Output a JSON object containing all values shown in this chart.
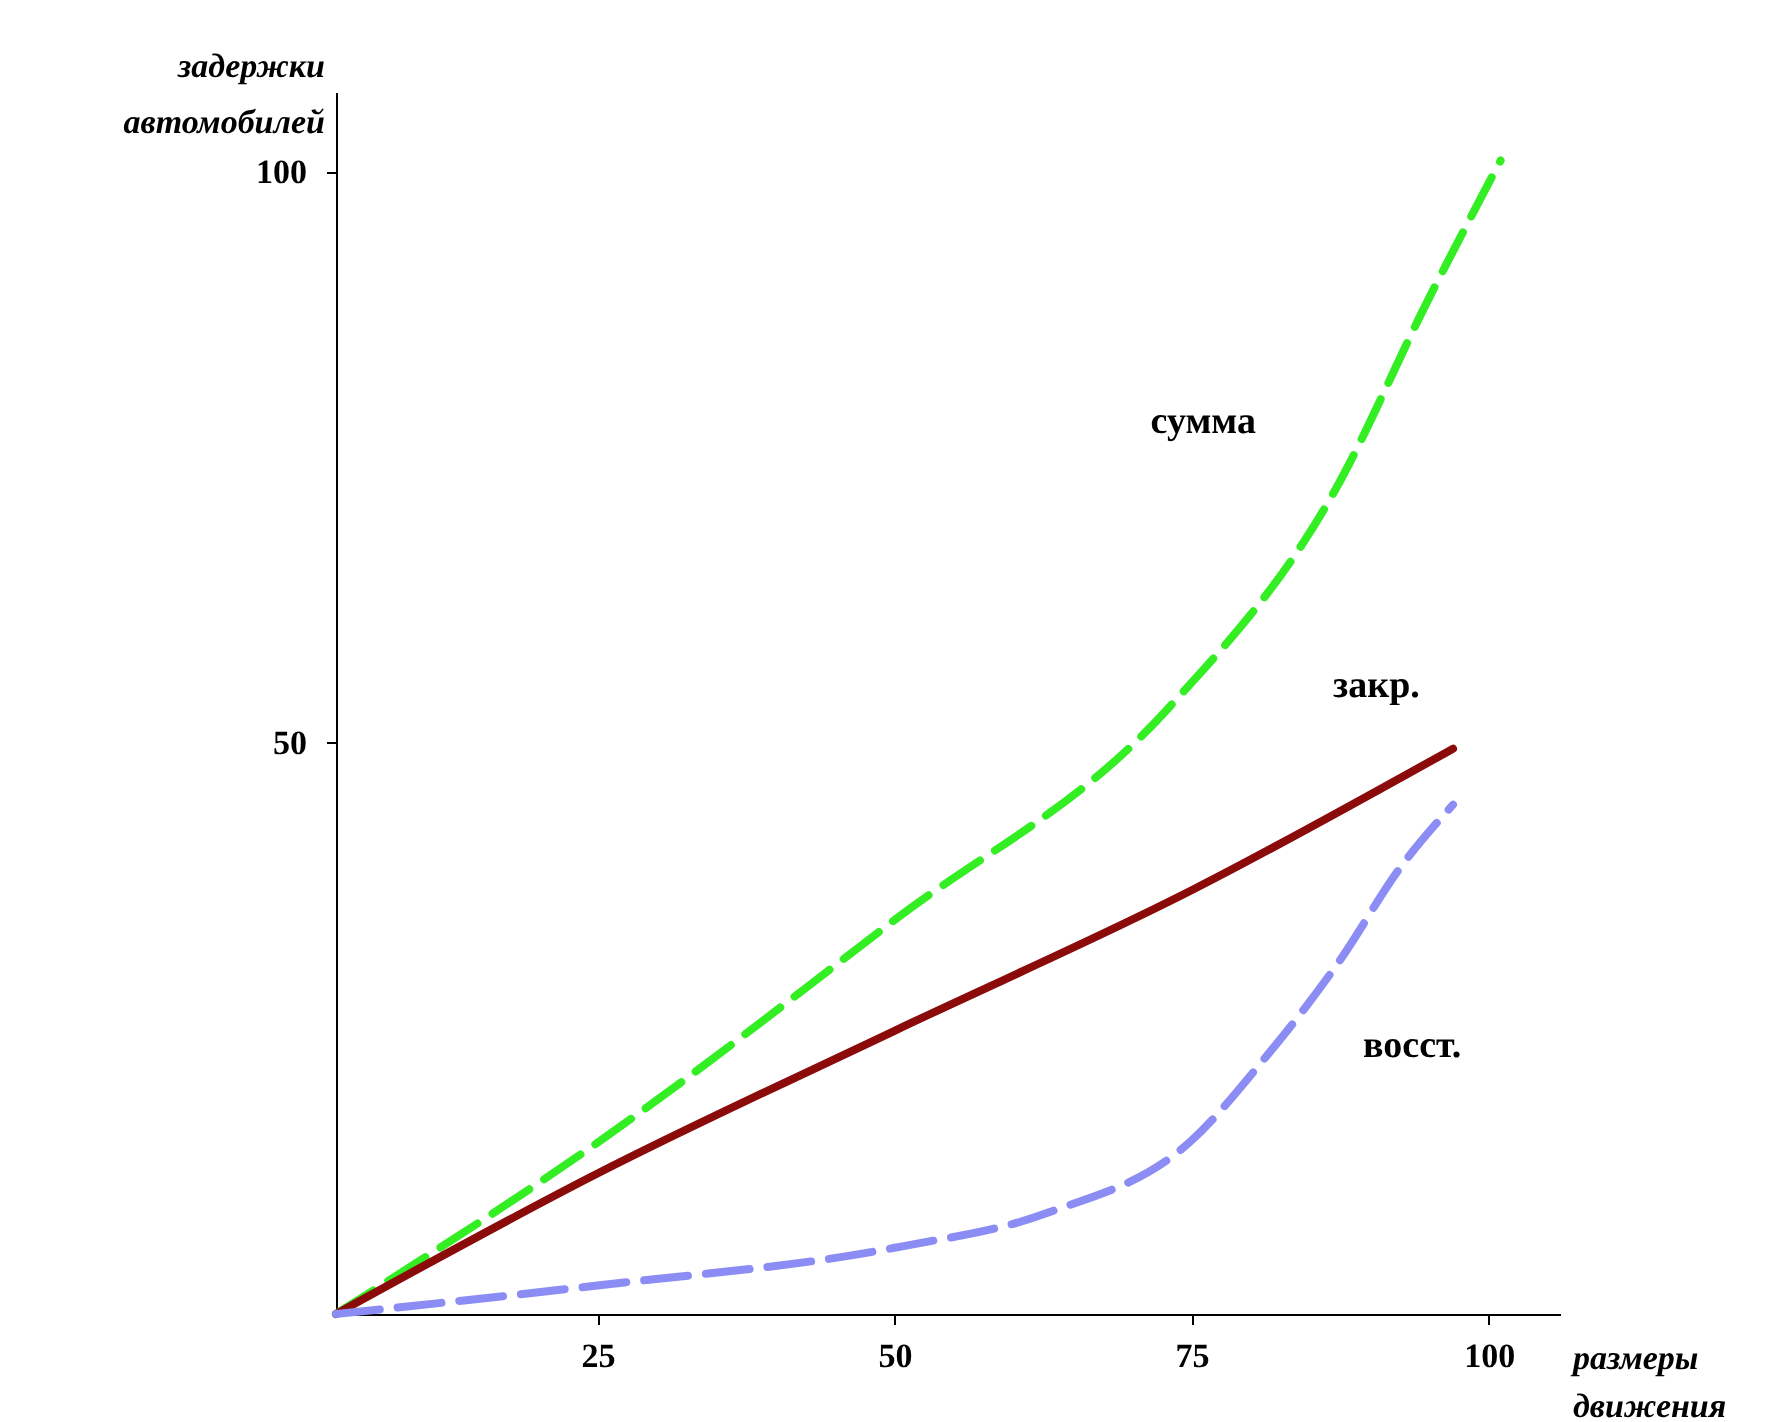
{
  "chart_data": {
    "type": "line",
    "xlabel": "размеры движения",
    "ylabel": "задержки автомобилей",
    "xlim": [
      3,
      106
    ],
    "ylim": [
      0,
      107
    ],
    "xticks": [
      25,
      50,
      75,
      100
    ],
    "yticks": [
      50,
      100
    ],
    "series": [
      {
        "name": "сумма",
        "color": "#33ee22",
        "line_style": "dashed",
        "x": [
          3,
          25,
          50,
          73,
          87,
          95,
          101
        ],
        "values": [
          0,
          15,
          34.5,
          53,
          72,
          89,
          101
        ]
      },
      {
        "name": "закр.",
        "color": "#8b0a0a",
        "line_style": "solid",
        "x": [
          3,
          25,
          50,
          75,
          97
        ],
        "values": [
          0,
          12.3,
          24.8,
          37.1,
          49.5
        ]
      },
      {
        "name": "восст.",
        "color": "#8c8cf5",
        "line_style": "dashed",
        "x": [
          3,
          25,
          50,
          63,
          75,
          81,
          87.5,
          92.5,
          97
        ],
        "values": [
          0,
          2.5,
          5.8,
          8.9,
          15.2,
          22.2,
          31,
          39,
          44.6
        ]
      }
    ]
  }
}
